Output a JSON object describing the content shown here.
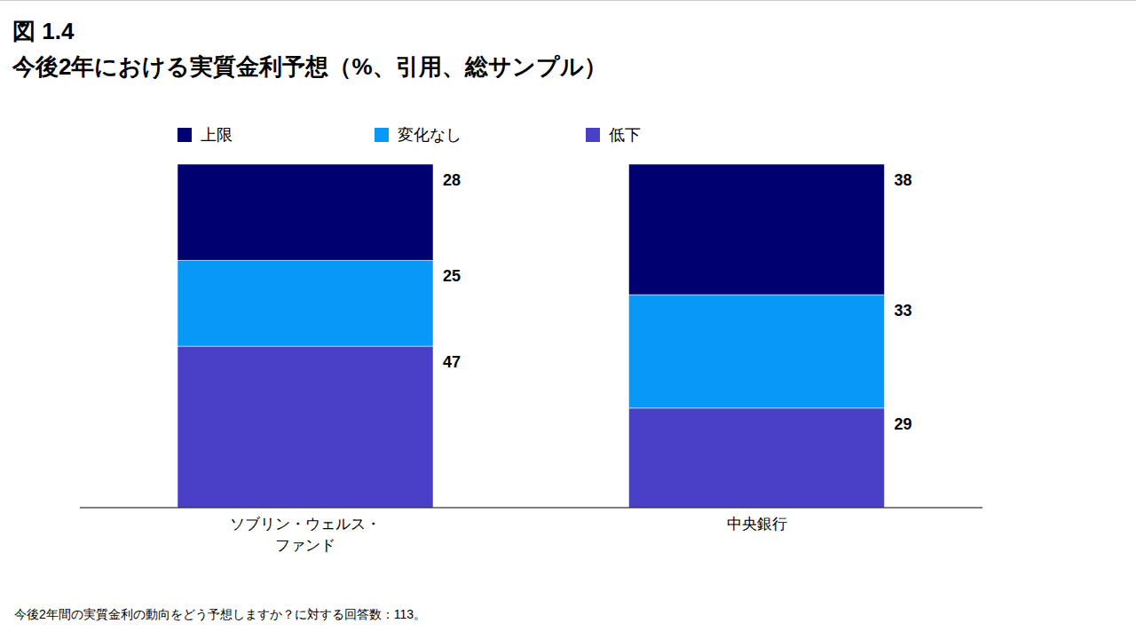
{
  "chart_data": {
    "type": "bar",
    "title": "図 1.4",
    "subtitle": "今後2年における実質金利予想（%、引用、総サンプル）",
    "categories": [
      "ソブリン・ウェルス・\nファンド",
      "中央銀行"
    ],
    "series": [
      {
        "name": "上限",
        "color": "#000070",
        "values": [
          28,
          38
        ]
      },
      {
        "name": "変化なし",
        "color": "#0898f8",
        "values": [
          25,
          33
        ]
      },
      {
        "name": "低下",
        "color": "#4a40c8",
        "values": [
          47,
          29
        ]
      }
    ],
    "stacked": true,
    "data_labels": true,
    "tick_labels": "x",
    "grid": false,
    "ylim": [
      0,
      100
    ],
    "annotations": [
      "今後2年間の実質金利の動向をどう予想しますか？に対する回答数：113。"
    ]
  }
}
